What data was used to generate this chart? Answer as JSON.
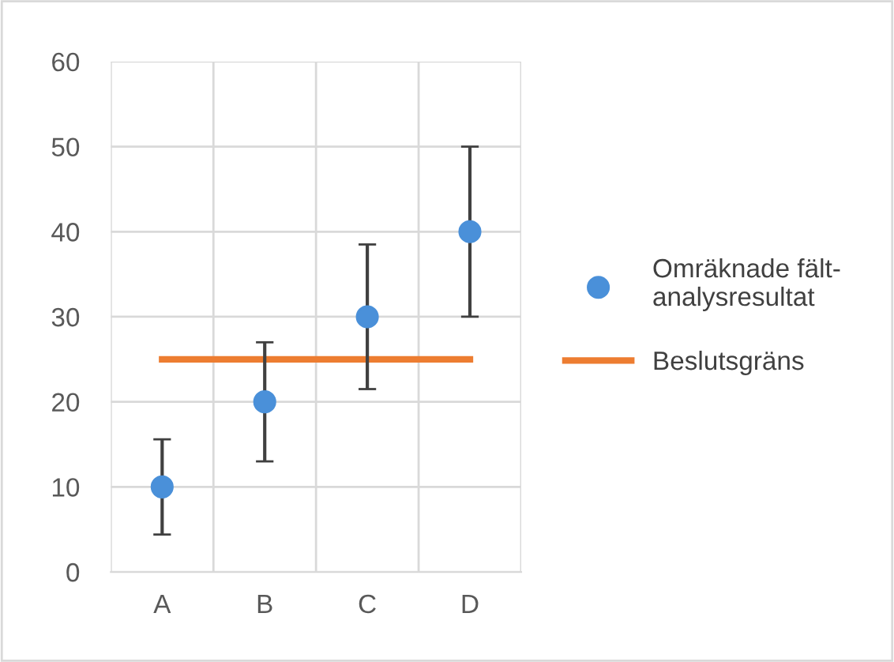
{
  "chart_data": {
    "type": "scatter",
    "categories": [
      "A",
      "B",
      "C",
      "D"
    ],
    "series": [
      {
        "name": "Omräknade fält-\nanalysresultat",
        "marker": "circle",
        "color": "#4a90d9",
        "values": [
          10,
          20,
          30,
          40
        ],
        "errors": [
          5.6,
          7,
          8.5,
          10
        ]
      },
      {
        "name": "Beslutsgräns",
        "type": "line",
        "color": "#ed7d31",
        "values": [
          25,
          25,
          25,
          25
        ]
      }
    ],
    "ylim": [
      0,
      60
    ],
    "yticks": [
      0,
      10,
      20,
      30,
      40,
      50,
      60
    ],
    "grid": true,
    "legend": "right"
  }
}
